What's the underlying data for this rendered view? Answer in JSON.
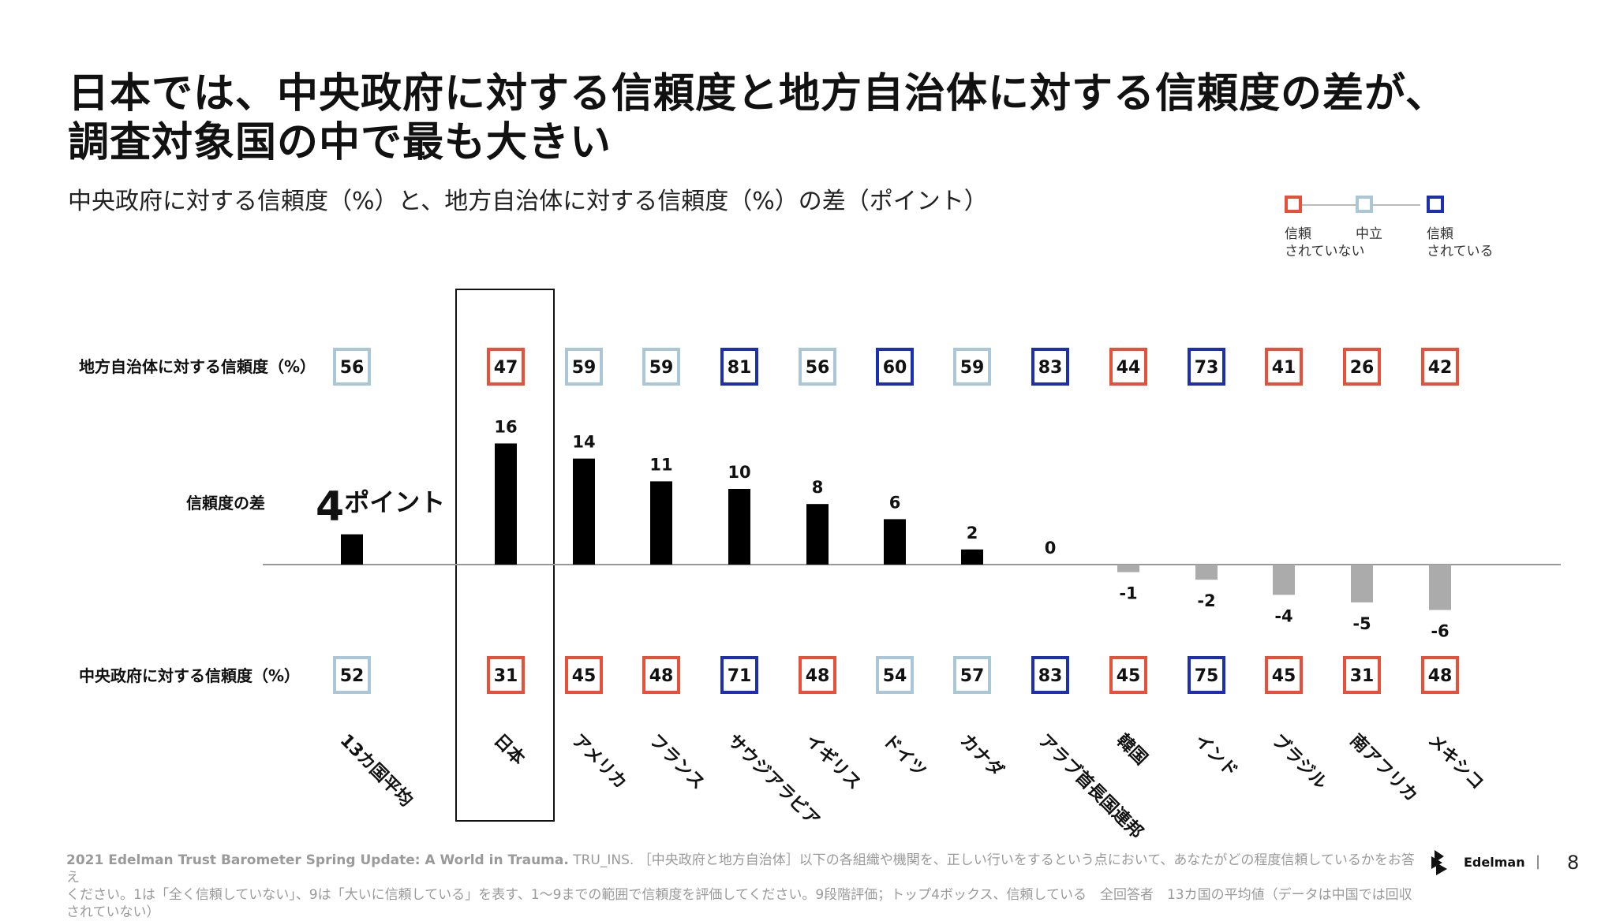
{
  "header": {
    "title_line1": "日本では、中央政府に対する信頼度と地方自治体に対する信頼度の差が、",
    "title_line2": "調査対象国の中で最も大きい",
    "subtitle": "中央政府に対する信頼度（%）と、地方自治体に対する信頼度（%）の差（ポイント）"
  },
  "legend": {
    "items": [
      {
        "label": "信頼\nされていない",
        "color": "#e8503a"
      },
      {
        "label": "中立",
        "color": "#a9c7d6"
      },
      {
        "label": "信頼\nされている",
        "color": "#1c2fb0"
      }
    ]
  },
  "colors": {
    "distrust": "#e8503a",
    "neutral": "#a9c7d6",
    "trust": "#1c2fb0",
    "positive_bar": "#000000",
    "negative_bar": "#ababab"
  },
  "chart_data": {
    "type": "bar",
    "row_labels": {
      "local": "地方自治体に対する信頼度（%）",
      "diff": "信頼度の差",
      "central": "中央政府に対する信頼度（%）"
    },
    "average_callout": {
      "number": "4",
      "unit": "ポイント"
    },
    "categories": [
      "13カ国平均",
      "日本",
      "アメリカ",
      "フランス",
      "サウジアラビア",
      "イギリス",
      "ドイツ",
      "カナダ",
      "アラブ首長国連邦",
      "韓国",
      "インド",
      "ブラジル",
      "南アフリカ",
      "メキシコ"
    ],
    "difference": [
      4,
      16,
      14,
      11,
      10,
      8,
      6,
      2,
      0,
      -1,
      -2,
      -4,
      -5,
      -6
    ],
    "difference_labels": [
      "",
      "16",
      "14",
      "11",
      "10",
      "8",
      "6",
      "2",
      "0",
      "-1",
      "-2",
      "-4",
      "-5",
      "-6"
    ],
    "local_trust": [
      56,
      47,
      59,
      59,
      81,
      56,
      60,
      59,
      83,
      44,
      73,
      41,
      26,
      42
    ],
    "local_trust_level": [
      "neutral",
      "distrust",
      "neutral",
      "neutral",
      "trust",
      "neutral",
      "trust",
      "neutral",
      "trust",
      "distrust",
      "trust",
      "distrust",
      "distrust",
      "distrust"
    ],
    "central_trust": [
      52,
      31,
      45,
      48,
      71,
      48,
      54,
      57,
      83,
      45,
      75,
      45,
      31,
      48
    ],
    "central_trust_level": [
      "neutral",
      "distrust",
      "distrust",
      "distrust",
      "trust",
      "distrust",
      "neutral",
      "neutral",
      "trust",
      "distrust",
      "trust",
      "distrust",
      "distrust",
      "distrust"
    ],
    "highlight": "日本",
    "ylim": [
      -6,
      16
    ]
  },
  "footer": {
    "source_bold": "2021 Edelman Trust Barometer Spring Update: A World in Trauma.",
    "source_rest": " TRU_INS. ［中央政府と地方自治体］以下の各組織や機関を、正しい行いをするという点において、あなたがどの程度信頼しているかをお答え",
    "line2": "ください。1は「全く信頼していない」、9は「大いに信頼している」を表す、1～9までの範囲で信頼度を評価してください。9段階評価；トップ4ボックス、信頼している　全回答者　13カ国の平均値（データは中国では回収されていない）",
    "logo_text": "Edelman",
    "separator": "|",
    "page_number": "8"
  }
}
